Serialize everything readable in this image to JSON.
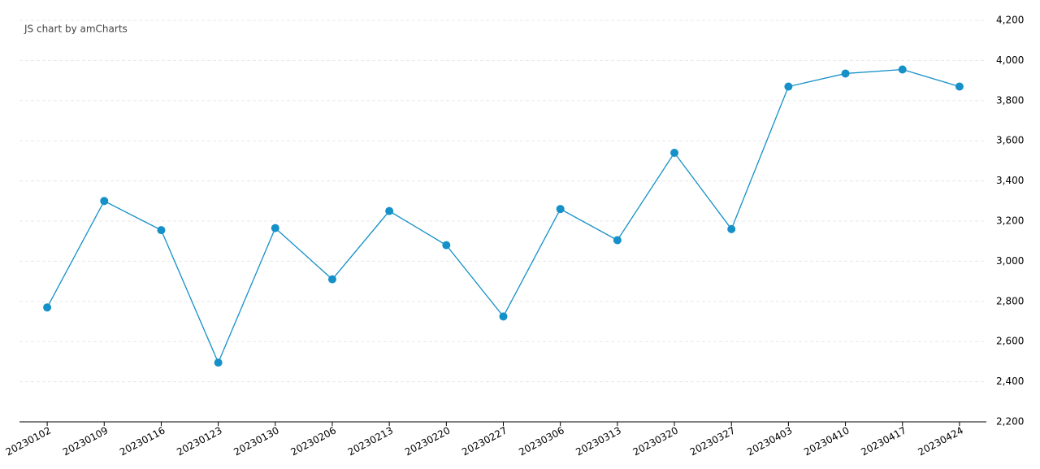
{
  "chart_data": {
    "type": "line",
    "watermark": "JS chart by amCharts",
    "categories": [
      "20230102",
      "20230109",
      "20230116",
      "20230123",
      "20230130",
      "20230206",
      "20230213",
      "20230220",
      "20230227",
      "20230306",
      "20230313",
      "20230320",
      "20230327",
      "20230403",
      "20230410",
      "20230417",
      "20230424"
    ],
    "series": [
      {
        "color": "#1590c8",
        "values": [
          2770,
          3300,
          3155,
          2495,
          3165,
          2910,
          3250,
          3080,
          2725,
          3260,
          3105,
          3540,
          3160,
          3870,
          3935,
          3955,
          3870
        ]
      }
    ],
    "ylim": [
      2200,
      4200
    ],
    "yticks": [
      {
        "value": 2200,
        "label": "2,200"
      },
      {
        "value": 2400,
        "label": "2,400"
      },
      {
        "value": 2600,
        "label": "2,600"
      },
      {
        "value": 2800,
        "label": "2,800"
      },
      {
        "value": 3000,
        "label": "3,000"
      },
      {
        "value": 3200,
        "label": "3,200"
      },
      {
        "value": 3400,
        "label": "3,400"
      },
      {
        "value": 3600,
        "label": "3,600"
      },
      {
        "value": 3800,
        "label": "3,800"
      },
      {
        "value": 4000,
        "label": "4,000"
      },
      {
        "value": 4200,
        "label": "4,200"
      }
    ],
    "grid": true
  }
}
